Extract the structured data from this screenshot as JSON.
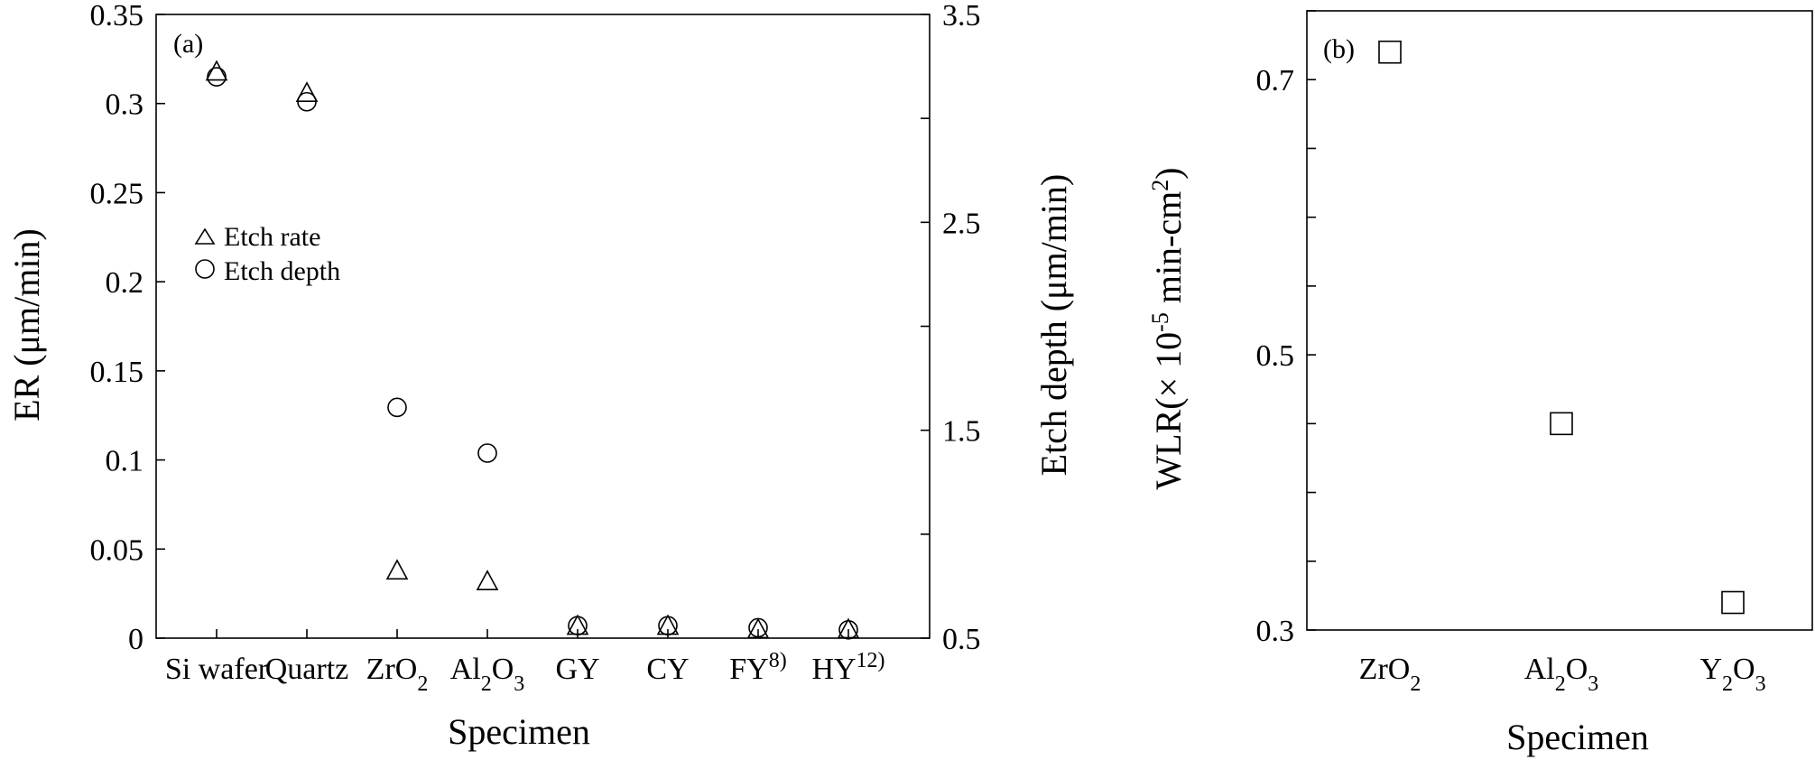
{
  "chart_data": [
    {
      "panel_label": "(a)",
      "type": "scatter",
      "categories": [
        "Si wafer",
        "Quartz",
        "ZrO2",
        "Al2O3",
        "GY",
        "CY",
        "FY8)",
        "HY12)"
      ],
      "category_labels": [
        {
          "base": "Si wafer",
          "sub": "",
          "mid": "",
          "sub2": "",
          "sup": ""
        },
        {
          "base": "Quartz",
          "sub": "",
          "mid": "",
          "sub2": "",
          "sup": ""
        },
        {
          "base": "ZrO",
          "sub": "2",
          "mid": "",
          "sub2": "",
          "sup": ""
        },
        {
          "base": "Al",
          "sub": "2",
          "mid": "O",
          "sub2": "3",
          "sup": ""
        },
        {
          "base": "GY",
          "sub": "",
          "mid": "",
          "sub2": "",
          "sup": ""
        },
        {
          "base": "CY",
          "sub": "",
          "mid": "",
          "sub2": "",
          "sup": ""
        },
        {
          "base": "FY",
          "sub": "",
          "mid": "",
          "sub2": "",
          "sup": "8)"
        },
        {
          "base": "HY",
          "sub": "",
          "mid": "",
          "sub2": "",
          "sup": "12)"
        }
      ],
      "xlabel": "Specimen",
      "ylabel": "ER  (μm/min)",
      "ylabel_right": "Etch depth (μm/min)",
      "ylim": [
        0,
        0.35
      ],
      "ylim_right": [
        0.5,
        3.5
      ],
      "yticks": [
        "0",
        "0.05",
        "0.1",
        "0.15",
        "0.2",
        "0.25",
        "0.3",
        "0.35"
      ],
      "yticks_right": [
        "0.5",
        "1.5",
        "2.5",
        "3.5"
      ],
      "series": [
        {
          "name": "Etch rate",
          "marker": "triangle",
          "axis": "left",
          "values": [
            0.318,
            0.306,
            0.038,
            0.032,
            0.007,
            0.007,
            0.005,
            0.005
          ]
        },
        {
          "name": "Etch depth",
          "marker": "circle",
          "axis": "right",
          "values": [
            3.2,
            3.08,
            1.61,
            1.39,
            0.56,
            0.56,
            0.55,
            0.54
          ]
        }
      ],
      "legend_position": "middle-left"
    },
    {
      "panel_label": "(b)",
      "type": "scatter",
      "categories": [
        "ZrO2",
        "Al2O3",
        "Y2O3"
      ],
      "category_labels": [
        {
          "base": "ZrO",
          "sub": "2",
          "mid": "",
          "sub2": "",
          "sup": ""
        },
        {
          "base": "Al",
          "sub": "2",
          "mid": "O",
          "sub2": "3",
          "sup": ""
        },
        {
          "base": "Y",
          "sub": "2",
          "mid": "O",
          "sub2": "3",
          "sup": ""
        }
      ],
      "xlabel": "Specimen",
      "ylabel_parts": {
        "pre": "WLR(× 10",
        "sup": "-5",
        "mid": " min-cm",
        "sup2": "2",
        "post": ")"
      },
      "ylim": [
        0.3,
        0.75
      ],
      "yticks": [
        "0.3",
        "0.5",
        "0.7"
      ],
      "series": [
        {
          "marker": "square",
          "values": [
            0.72,
            0.45,
            0.32
          ]
        }
      ]
    }
  ]
}
